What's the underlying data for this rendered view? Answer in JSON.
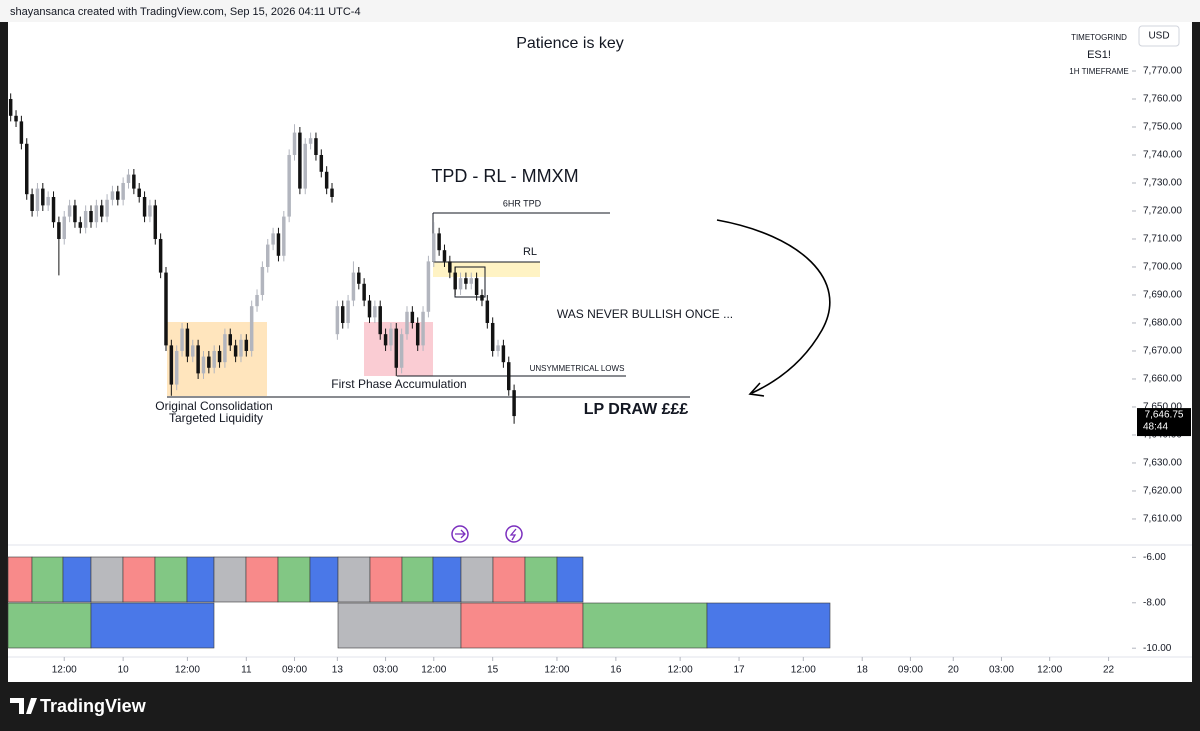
{
  "header": {
    "credit": "shayansanca created with TradingView.com, Sep 15, 2026 04:11 UTC-4",
    "symbol_label": "TIMETOGRIND",
    "symbol": "ES1!",
    "timeframe": "1H TIMEFRAME",
    "currency": "USD"
  },
  "footer": {
    "brand": "TradingView"
  },
  "chart_data": {
    "type": "candlestick",
    "title": "Patience is key",
    "x": [
      0,
      1,
      2,
      3,
      4,
      5,
      6,
      7,
      8,
      9,
      10,
      11,
      12,
      13,
      14,
      15,
      16,
      17,
      18,
      19,
      20,
      21,
      22,
      23,
      24,
      25,
      26,
      27,
      28,
      29,
      30,
      31,
      32,
      33,
      34,
      35,
      36,
      37,
      38,
      39,
      40,
      41,
      42,
      43,
      44,
      45,
      46,
      47,
      48,
      49,
      50,
      51,
      52,
      53,
      54,
      55,
      56,
      57,
      58,
      59,
      60,
      61,
      62,
      63,
      64,
      65,
      66,
      67,
      68,
      69,
      70,
      71,
      72,
      73,
      74,
      75,
      76,
      77,
      78,
      79,
      80,
      81,
      82,
      83,
      84,
      85,
      86,
      87,
      88,
      89,
      90,
      91,
      92,
      93,
      94
    ],
    "open": [
      7760,
      7754,
      7752,
      7744,
      7726,
      7720,
      7728,
      7722,
      7725,
      7716,
      7710,
      7718,
      7722,
      7716,
      7714,
      7720,
      7716,
      7722,
      7718,
      7724,
      7727,
      7724,
      7730,
      7733,
      7728,
      7725,
      7718,
      7722,
      7710,
      7698,
      7672,
      7658,
      7670,
      7678,
      7668,
      7672,
      7662,
      7668,
      7664,
      7670,
      7666,
      7676,
      7672,
      7668,
      7674,
      7670,
      7686,
      7690,
      7700,
      7708,
      7712,
      7704,
      7718,
      7740,
      7748,
      7728,
      7744,
      7746,
      7740,
      7734,
      7728,
      7676,
      7686,
      7680,
      7688,
      7698,
      7694,
      7688,
      7682,
      7686,
      7676,
      7672,
      7678,
      7664,
      7676,
      7684,
      7680,
      7672,
      7684,
      7702,
      7712,
      7706,
      7702,
      7698,
      7692,
      7696,
      7694,
      7696,
      7690,
      7688,
      7680,
      7670,
      7672,
      7666,
      7656
    ],
    "high": [
      7762,
      7756,
      7754,
      7746,
      7728,
      7730,
      7730,
      7727,
      7727,
      7718,
      7720,
      7724,
      7724,
      7718,
      7722,
      7722,
      7724,
      7724,
      7726,
      7729,
      7729,
      7732,
      7735,
      7735,
      7730,
      7727,
      7724,
      7724,
      7712,
      7700,
      7674,
      7672,
      7680,
      7680,
      7674,
      7674,
      7670,
      7670,
      7672,
      7672,
      7678,
      7678,
      7674,
      7676,
      7676,
      7688,
      7692,
      7702,
      7710,
      7714,
      7714,
      7720,
      7742,
      7751,
      7750,
      7746,
      7748,
      7748,
      7742,
      7736,
      7730,
      7688,
      7688,
      7690,
      7702,
      7700,
      7696,
      7690,
      7688,
      7688,
      7678,
      7680,
      7680,
      7678,
      7686,
      7686,
      7682,
      7686,
      7704,
      7716,
      7714,
      7708,
      7704,
      7700,
      7698,
      7698,
      7698,
      7698,
      7692,
      7690,
      7682,
      7674,
      7674,
      7668,
      7658
    ],
    "low": [
      7752,
      7750,
      7742,
      7724,
      7718,
      7718,
      7720,
      7720,
      7714,
      7697,
      7708,
      7716,
      7714,
      7712,
      7712,
      7714,
      7714,
      7716,
      7716,
      7722,
      7722,
      7722,
      7728,
      7726,
      7723,
      7716,
      7716,
      7708,
      7696,
      7670,
      7654,
      7656,
      7668,
      7666,
      7666,
      7660,
      7660,
      7662,
      7662,
      7664,
      7664,
      7670,
      7666,
      7666,
      7668,
      7668,
      7684,
      7688,
      7698,
      7706,
      7702,
      7702,
      7716,
      7738,
      7726,
      7726,
      7742,
      7738,
      7732,
      7726,
      7723,
      7674,
      7678,
      7678,
      7686,
      7692,
      7686,
      7680,
      7680,
      7674,
      7670,
      7670,
      7661,
      7662,
      7674,
      7678,
      7670,
      7670,
      7682,
      7700,
      7704,
      7700,
      7696,
      7690,
      7690,
      7692,
      7692,
      7688,
      7686,
      7678,
      7668,
      7668,
      7664,
      7654,
      7644
    ],
    "close": [
      7754,
      7752,
      7744,
      7726,
      7720,
      7728,
      7722,
      7725,
      7716,
      7710,
      7718,
      7722,
      7716,
      7714,
      7720,
      7716,
      7722,
      7718,
      7724,
      7727,
      7724,
      7730,
      7733,
      7728,
      7725,
      7718,
      7722,
      7710,
      7698,
      7672,
      7658,
      7670,
      7678,
      7668,
      7672,
      7662,
      7668,
      7664,
      7670,
      7666,
      7676,
      7672,
      7668,
      7674,
      7670,
      7686,
      7690,
      7700,
      7708,
      7712,
      7704,
      7718,
      7740,
      7748,
      7728,
      7744,
      7746,
      7740,
      7734,
      7728,
      7725,
      7686,
      7680,
      7688,
      7698,
      7694,
      7688,
      7682,
      7686,
      7676,
      7672,
      7678,
      7664,
      7676,
      7684,
      7680,
      7672,
      7684,
      7702,
      7712,
      7706,
      7702,
      7698,
      7692,
      7696,
      7694,
      7696,
      7690,
      7688,
      7680,
      7670,
      7672,
      7666,
      7656,
      7646.75
    ],
    "up_color": "#b2b5be",
    "down_color": "#131313",
    "xlim": [
      -0.5,
      209
    ],
    "xticks": [
      {
        "value": 10,
        "label": "12:00"
      },
      {
        "value": 21,
        "label": "10"
      },
      {
        "value": 33,
        "label": "12:00"
      },
      {
        "value": 44,
        "label": "11"
      },
      {
        "value": 53,
        "label": "09:00"
      },
      {
        "value": 61,
        "label": "13"
      },
      {
        "value": 70,
        "label": "03:00"
      },
      {
        "value": 79,
        "label": "12:00"
      },
      {
        "value": 90,
        "label": "15"
      },
      {
        "value": 102,
        "label": "12:00"
      },
      {
        "value": 113,
        "label": "16"
      },
      {
        "value": 125,
        "label": "12:00"
      },
      {
        "value": 136,
        "label": "17"
      },
      {
        "value": 148,
        "label": "12:00"
      },
      {
        "value": 159,
        "label": "18"
      },
      {
        "value": 168,
        "label": "09:00"
      },
      {
        "value": 176,
        "label": "20"
      },
      {
        "value": 185,
        "label": "03:00"
      },
      {
        "value": 194,
        "label": "12:00"
      },
      {
        "value": 205,
        "label": "22"
      }
    ],
    "ylim": [
      7600.7,
      7787.5
    ],
    "yticks": [
      {
        "value": 7610,
        "label": "7,610.00"
      },
      {
        "value": 7620,
        "label": "7,620.00"
      },
      {
        "value": 7630,
        "label": "7,630.00"
      },
      {
        "value": 7640,
        "label": "7,640.00"
      },
      {
        "value": 7650,
        "label": "7,650.00"
      },
      {
        "value": 7660,
        "label": "7,660.00"
      },
      {
        "value": 7670,
        "label": "7,670.00"
      },
      {
        "value": 7680,
        "label": "7,680.00"
      },
      {
        "value": 7690,
        "label": "7,690.00"
      },
      {
        "value": 7700,
        "label": "7,700.00"
      },
      {
        "value": 7710,
        "label": "7,710.00"
      },
      {
        "value": 7720,
        "label": "7,720.00"
      },
      {
        "value": 7730,
        "label": "7,730.00"
      },
      {
        "value": 7740,
        "label": "7,740.00"
      },
      {
        "value": 7750,
        "label": "7,750.00"
      },
      {
        "value": 7760,
        "label": "7,760.00"
      },
      {
        "value": 7770,
        "label": "7,770.00"
      }
    ],
    "last_price": {
      "value": 7646.75,
      "label": "7,646.75"
    },
    "countdown": "48:44",
    "annotations": [
      "TPD - RL - MMXM",
      "6HR TPD",
      "RL",
      "WAS NEVER BULLISH ONCE ...",
      "UNSYMMETRICAL LOWS",
      "First Phase Accumulation",
      "Original Consolidation",
      "Targeted Liquidity",
      "LP DRAW £££"
    ],
    "indicator": {
      "ylim": [
        -11.4,
        -5.5
      ],
      "yticks": [
        {
          "value": -6,
          "label": "-6.00"
        },
        {
          "value": -8,
          "label": "-8.00"
        },
        {
          "value": -10,
          "label": "-10.00"
        }
      ]
    }
  }
}
